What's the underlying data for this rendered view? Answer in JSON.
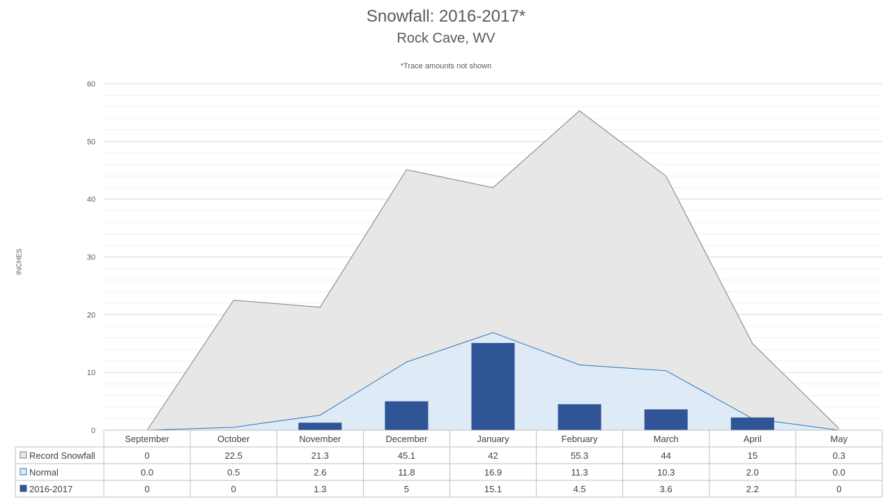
{
  "chart_data": {
    "type": "area",
    "title": "Snowfall: 2016-2017*",
    "subtitle": "Rock Cave, WV",
    "note": "*Trace amounts not shown",
    "ylabel": "INCHES",
    "ylim": [
      0,
      60
    ],
    "yticks": [
      0,
      10,
      20,
      30,
      40,
      50,
      60
    ],
    "categories": [
      "September",
      "October",
      "November",
      "December",
      "January",
      "February",
      "March",
      "April",
      "May"
    ],
    "series": [
      {
        "name": "Record Snowfall",
        "kind": "area",
        "color": "#e7e7e7",
        "stroke": "#7f7f7f",
        "values": [
          0,
          22.5,
          21.3,
          45.1,
          42,
          55.3,
          44,
          15,
          0.3
        ],
        "labels": [
          "0",
          "22.5",
          "21.3",
          "45.1",
          "42",
          "55.3",
          "44",
          "15",
          "0.3"
        ]
      },
      {
        "name": "Normal",
        "kind": "area",
        "color": "#deebf7",
        "stroke": "#2e75b6",
        "values": [
          0.0,
          0.5,
          2.6,
          11.8,
          16.9,
          11.3,
          10.3,
          2.0,
          0.0
        ],
        "labels": [
          "0.0",
          "0.5",
          "2.6",
          "11.8",
          "16.9",
          "11.3",
          "10.3",
          "2.0",
          "0.0"
        ]
      },
      {
        "name": "2016-2017",
        "kind": "bar",
        "color": "#2f5597",
        "stroke": "#2f5597",
        "values": [
          0,
          0,
          1.3,
          5,
          15.1,
          4.5,
          3.6,
          2.2,
          0
        ],
        "labels": [
          "0",
          "0",
          "1.3",
          "5",
          "15.1",
          "4.5",
          "3.6",
          "2.2",
          "0"
        ]
      }
    ],
    "grid": true,
    "legend": "data-table"
  }
}
